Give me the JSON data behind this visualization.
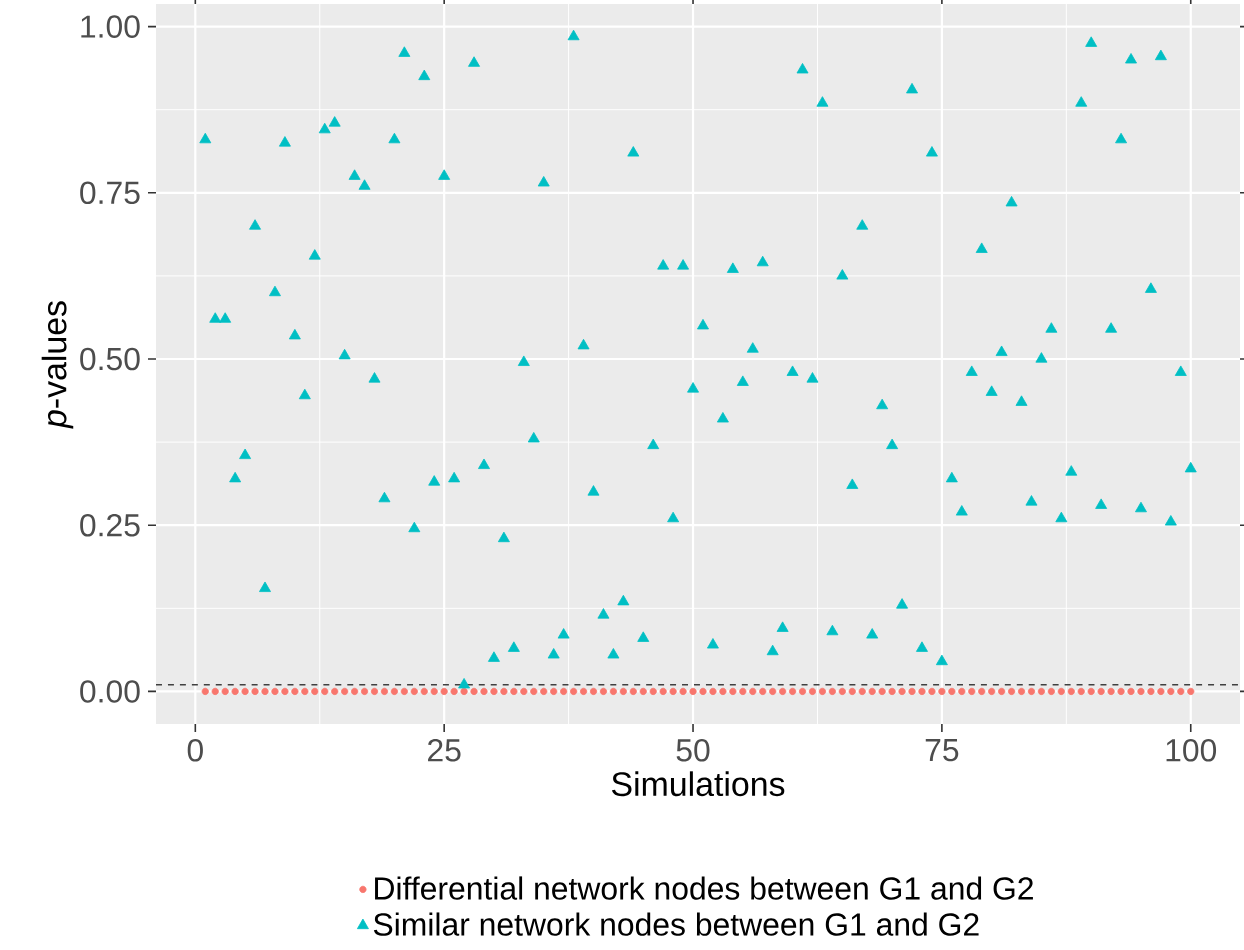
{
  "chart_data": {
    "type": "scatter",
    "xlabel": "Simulations",
    "ylabel": "*p*-values",
    "x": [
      1,
      2,
      3,
      4,
      5,
      6,
      7,
      8,
      9,
      10,
      11,
      12,
      13,
      14,
      15,
      16,
      17,
      18,
      19,
      20,
      21,
      22,
      23,
      24,
      25,
      26,
      27,
      28,
      29,
      30,
      31,
      32,
      33,
      34,
      35,
      36,
      37,
      38,
      39,
      40,
      41,
      42,
      43,
      44,
      45,
      46,
      47,
      48,
      49,
      50,
      51,
      52,
      53,
      54,
      55,
      56,
      57,
      58,
      59,
      60,
      61,
      62,
      63,
      64,
      65,
      66,
      67,
      68,
      69,
      70,
      71,
      72,
      73,
      74,
      75,
      76,
      77,
      78,
      79,
      80,
      81,
      82,
      83,
      84,
      85,
      86,
      87,
      88,
      89,
      90,
      91,
      92,
      93,
      94,
      95,
      96,
      97,
      98,
      99,
      100
    ],
    "series": [
      {
        "name": "Differential network nodes between G1 and G2",
        "color": "#f8766d",
        "marker": "circle",
        "values": [
          0,
          0,
          0,
          0,
          0,
          0,
          0,
          0,
          0,
          0,
          0,
          0,
          0,
          0,
          0,
          0,
          0,
          0,
          0,
          0,
          0,
          0,
          0,
          0,
          0,
          0,
          0,
          0,
          0,
          0,
          0,
          0,
          0,
          0,
          0,
          0,
          0,
          0,
          0,
          0,
          0,
          0,
          0,
          0,
          0,
          0,
          0,
          0,
          0,
          0,
          0,
          0,
          0,
          0,
          0,
          0,
          0,
          0,
          0,
          0,
          0,
          0,
          0,
          0,
          0,
          0,
          0,
          0,
          0,
          0,
          0,
          0,
          0,
          0,
          0,
          0,
          0,
          0,
          0,
          0,
          0,
          0,
          0,
          0,
          0,
          0,
          0,
          0,
          0,
          0,
          0,
          0,
          0,
          0,
          0,
          0,
          0,
          0,
          0,
          0
        ]
      },
      {
        "name": "Similar network nodes between G1 and G2",
        "color": "#00bfc4",
        "marker": "triangle",
        "values": [
          0.83,
          0.56,
          0.56,
          0.32,
          0.355,
          0.7,
          0.155,
          0.6,
          0.825,
          0.535,
          0.445,
          0.655,
          0.845,
          0.855,
          0.505,
          0.775,
          0.76,
          0.47,
          0.29,
          0.83,
          0.96,
          0.245,
          0.925,
          0.315,
          0.775,
          0.32,
          0.01,
          0.945,
          0.34,
          0.05,
          0.23,
          0.065,
          0.495,
          0.38,
          0.765,
          0.055,
          0.085,
          0.985,
          0.52,
          0.3,
          0.115,
          0.055,
          0.135,
          0.81,
          0.08,
          0.37,
          0.64,
          0.26,
          0.64,
          0.455,
          0.55,
          0.07,
          0.41,
          0.635,
          0.465,
          0.515,
          0.645,
          0.06,
          0.095,
          0.48,
          0.935,
          0.47,
          0.885,
          0.09,
          0.625,
          0.31,
          0.7,
          0.085,
          0.43,
          0.37,
          0.13,
          0.905,
          0.065,
          0.81,
          0.045,
          0.32,
          0.27,
          0.48,
          0.665,
          0.45,
          0.51,
          0.735,
          0.435,
          0.285,
          0.5,
          0.545,
          0.26,
          0.33,
          0.885,
          0.975,
          0.28,
          0.545,
          0.83,
          0.95,
          0.275,
          0.605,
          0.955,
          0.255,
          0.48,
          0.335
        ]
      }
    ],
    "xlim": [
      -3.95,
      104.95
    ],
    "ylim": [
      -0.049,
      1.034
    ],
    "xticks": [
      0,
      25,
      50,
      75,
      100
    ],
    "yticks": [
      {
        "value": 0,
        "label": "0.00"
      },
      {
        "value": 0.25,
        "label": "0.25"
      },
      {
        "value": 0.5,
        "label": "0.50"
      },
      {
        "value": 0.75,
        "label": "0.75"
      },
      {
        "value": 1,
        "label": "1.00"
      }
    ],
    "ref_lines": [
      {
        "axis": "y",
        "value": 0.01,
        "color": "#404040",
        "line_style": "dashed"
      }
    ],
    "grid": true,
    "legend": "bottom"
  }
}
